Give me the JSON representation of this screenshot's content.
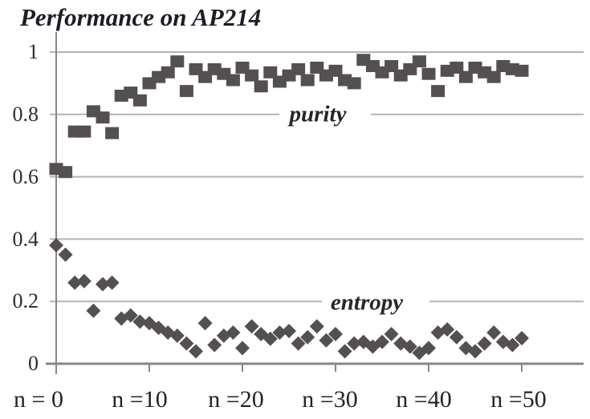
{
  "window": {
    "title": "Performance on AP214"
  },
  "chart_data": {
    "type": "scatter",
    "title": "Performance on AP214",
    "xlabel": "",
    "ylabel": "",
    "xlim": [
      0,
      50
    ],
    "ylim": [
      0,
      1
    ],
    "grid": true,
    "legend_position": "inline-annotations",
    "x_tick_labels": [
      "n = 0",
      "n =10",
      "n =20",
      "n =30",
      "n =40",
      "n =50"
    ],
    "x_tick_values": [
      0,
      10,
      20,
      30,
      40,
      50
    ],
    "y_tick_labels": [
      "1",
      "0.8",
      "0.6",
      "0.4",
      "0.2",
      "0"
    ],
    "y_tick_values": [
      1,
      0.8,
      0.6,
      0.4,
      0.2,
      0
    ],
    "annotations": [
      {
        "text": "purity",
        "x": 28,
        "y": 0.8
      },
      {
        "text": "entropy",
        "x": 33,
        "y": 0.2
      }
    ],
    "series": [
      {
        "name": "purity",
        "label": "purity",
        "marker": "square",
        "x": [
          0,
          1,
          2,
          3,
          4,
          5,
          6,
          7,
          8,
          9,
          10,
          11,
          12,
          13,
          14,
          15,
          16,
          17,
          18,
          19,
          20,
          21,
          22,
          23,
          24,
          25,
          26,
          27,
          28,
          29,
          30,
          31,
          32,
          33,
          34,
          35,
          36,
          37,
          38,
          39,
          40,
          41,
          42,
          43,
          44,
          45,
          46,
          47,
          48,
          49,
          50
        ],
        "values": [
          0.625,
          0.615,
          0.745,
          0.745,
          0.81,
          0.79,
          0.74,
          0.86,
          0.87,
          0.845,
          0.9,
          0.92,
          0.935,
          0.97,
          0.875,
          0.945,
          0.92,
          0.945,
          0.93,
          0.91,
          0.95,
          0.925,
          0.89,
          0.935,
          0.905,
          0.925,
          0.945,
          0.91,
          0.95,
          0.925,
          0.94,
          0.91,
          0.9,
          0.975,
          0.955,
          0.935,
          0.955,
          0.925,
          0.945,
          0.97,
          0.93,
          0.875,
          0.94,
          0.95,
          0.92,
          0.95,
          0.935,
          0.92,
          0.955,
          0.945,
          0.94
        ]
      },
      {
        "name": "entropy",
        "label": "entropy",
        "marker": "diamond",
        "x": [
          0,
          1,
          2,
          3,
          4,
          5,
          6,
          7,
          8,
          9,
          10,
          11,
          12,
          13,
          14,
          15,
          16,
          17,
          18,
          19,
          20,
          21,
          22,
          23,
          24,
          25,
          26,
          27,
          28,
          29,
          30,
          31,
          32,
          33,
          34,
          35,
          36,
          37,
          38,
          39,
          40,
          41,
          42,
          43,
          44,
          45,
          46,
          47,
          48,
          49,
          50
        ],
        "values": [
          0.38,
          0.35,
          0.26,
          0.265,
          0.17,
          0.255,
          0.26,
          0.145,
          0.155,
          0.135,
          0.13,
          0.115,
          0.1,
          0.09,
          0.065,
          0.04,
          0.13,
          0.06,
          0.09,
          0.1,
          0.05,
          0.12,
          0.095,
          0.08,
          0.1,
          0.105,
          0.065,
          0.085,
          0.12,
          0.075,
          0.095,
          0.04,
          0.065,
          0.07,
          0.055,
          0.07,
          0.095,
          0.065,
          0.055,
          0.035,
          0.05,
          0.1,
          0.11,
          0.085,
          0.05,
          0.04,
          0.065,
          0.1,
          0.07,
          0.06,
          0.082
        ]
      }
    ],
    "colors": {
      "marker": "#544f50",
      "gridline": "#b3b3b3",
      "axis": "#878787",
      "text": "#262626",
      "title_text": "#1d1d26"
    }
  }
}
